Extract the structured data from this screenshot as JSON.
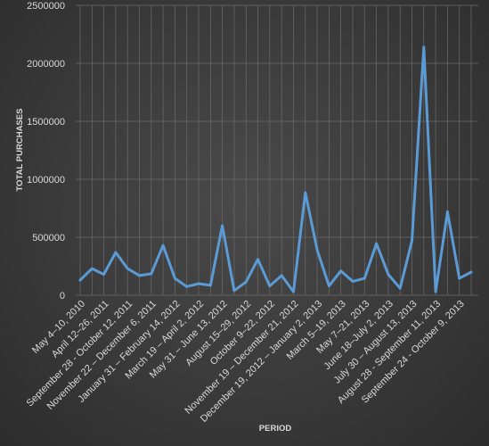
{
  "chart_data": {
    "type": "line",
    "xlabel": "PERIOD",
    "ylabel": "TOTAL PURCHASES",
    "ylim": [
      0,
      2500000
    ],
    "yticks": [
      0,
      500000,
      1000000,
      1500000,
      2000000,
      2500000
    ],
    "ytick_labels": [
      "0",
      "500000",
      "1000000",
      "1500000",
      "2000000",
      "2500000"
    ],
    "grid": true,
    "x_tick_labels": [
      "May 4–10, 2010",
      "April 12–26, 2011",
      "September 28 - October 12, 2011",
      "November 22 – December 6, 2011",
      "January 31 – February 14, 2012",
      "March 19 – April 2, 2012",
      "May 31 – June 13, 2012",
      "August 15–29, 2012",
      "October 9–22, 2012",
      "November 19 – December 21, 2012",
      "December 19, 2012 – January 2, 2013",
      "March 5–19, 2013",
      "May 7–21, 2013",
      "June 18–July 2, 2013",
      "July 30 – August 13, 2013",
      "August 28 - September 11, 2013",
      "September 24 - October 9, 2013"
    ],
    "x_tick_indices": [
      0,
      2,
      4,
      6,
      8,
      10,
      12,
      14,
      16,
      18,
      20,
      22,
      24,
      26,
      28,
      30,
      32
    ],
    "series": [
      {
        "values": [
          130000,
          230000,
          180000,
          370000,
          230000,
          170000,
          185000,
          430000,
          145000,
          75000,
          100000,
          85000,
          600000,
          40000,
          115000,
          310000,
          80000,
          170000,
          30000,
          885000,
          390000,
          80000,
          210000,
          120000,
          145000,
          445000,
          180000,
          60000,
          470000,
          2140000,
          30000,
          720000,
          145000,
          200000
        ]
      }
    ]
  },
  "colors": {
    "line": "#5b9bd5",
    "text": "#d9d9d9",
    "grid": "#6b6b6b"
  }
}
